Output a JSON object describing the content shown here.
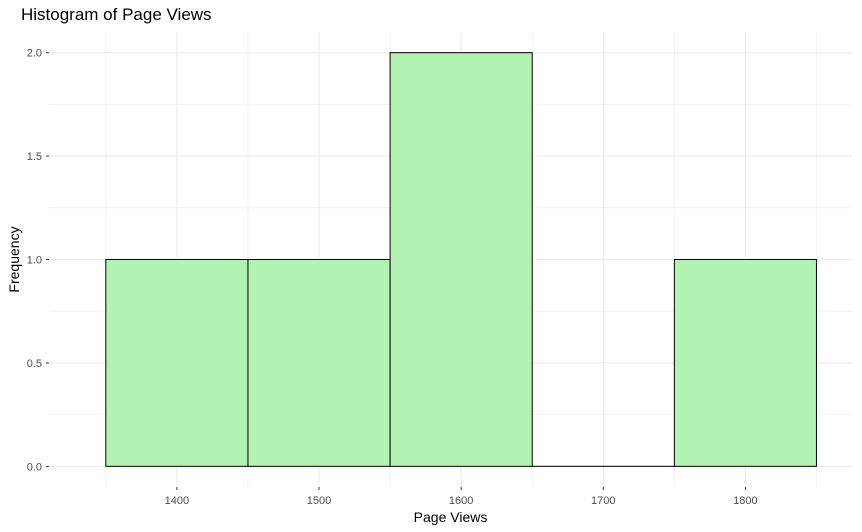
{
  "chart_data": {
    "type": "bar",
    "title": "Histogram of Page Views",
    "xlabel": "Page Views",
    "ylabel": "Frequency",
    "bins": [
      {
        "start": 1350,
        "end": 1450,
        "count": 1
      },
      {
        "start": 1450,
        "end": 1550,
        "count": 1
      },
      {
        "start": 1550,
        "end": 1650,
        "count": 2
      },
      {
        "start": 1650,
        "end": 1750,
        "count": 0
      },
      {
        "start": 1750,
        "end": 1850,
        "count": 1
      }
    ],
    "xlim": [
      1310,
      1875
    ],
    "ylim": [
      -0.1,
      2.1
    ],
    "x_ticks": [
      1400,
      1500,
      1600,
      1700,
      1800
    ],
    "x_tick_labels": [
      "1400",
      "1500",
      "1600",
      "1700",
      "1800"
    ],
    "y_ticks": [
      0,
      0.5,
      1,
      1.5,
      2
    ],
    "y_tick_labels": [
      "0.0",
      "0.5",
      "1.0",
      "1.5",
      "2.0"
    ],
    "bar_fill": "#b2f2b2",
    "bar_outline": "#000000",
    "grid": true,
    "grid_color": "#ebebeb",
    "legend": "none"
  }
}
